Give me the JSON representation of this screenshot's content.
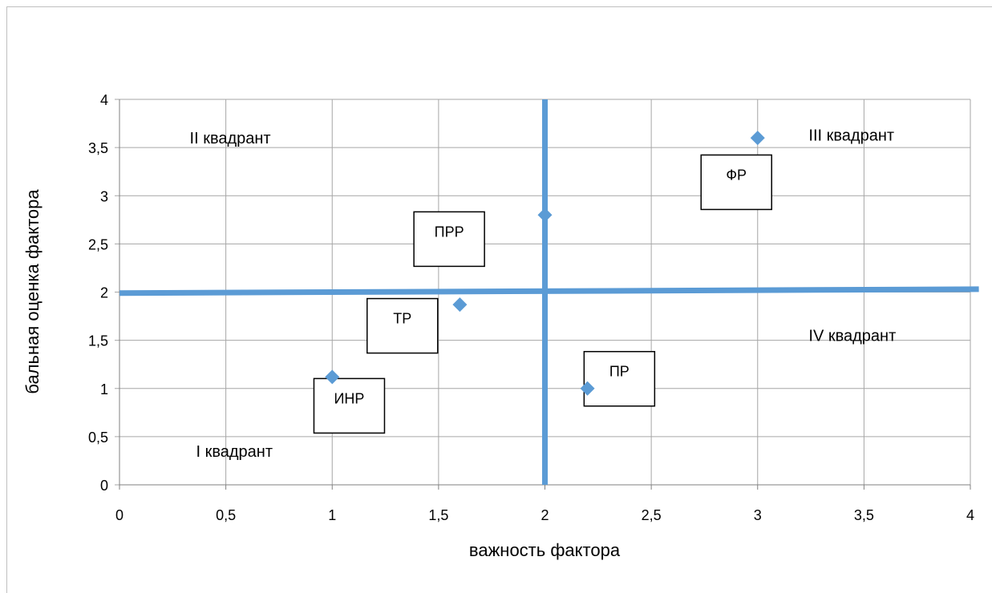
{
  "chart_data": {
    "type": "scatter",
    "xlabel": "важность фактора",
    "ylabel": "бальная оценка фактора",
    "xlim": [
      0,
      4
    ],
    "ylim": [
      0,
      4
    ],
    "x_ticks": [
      "0",
      "0,5",
      "1",
      "1,5",
      "2",
      "2,5",
      "3",
      "3,5",
      "4"
    ],
    "y_ticks": [
      "0",
      "0,5",
      "1",
      "1,5",
      "2",
      "2,5",
      "3",
      "3,5",
      "4"
    ],
    "grid": true,
    "marker_color": "#5b9bd5",
    "line_color": "#5b9bd5",
    "points": [
      {
        "x": 1.0,
        "y": 1.12
      },
      {
        "x": 1.6,
        "y": 1.87
      },
      {
        "x": 2.0,
        "y": 2.8
      },
      {
        "x": 2.2,
        "y": 1.0
      },
      {
        "x": 3.0,
        "y": 3.6
      }
    ],
    "divider_lines": [
      {
        "x1": 2.0,
        "y1": 0,
        "x2": 2.0,
        "y2": 4
      },
      {
        "x1": 0,
        "y1": 1.99,
        "x2": 4.04,
        "y2": 2.03
      }
    ],
    "quadrant_labels": [
      {
        "text": "II квадрант",
        "x": 0.33,
        "y": 3.6
      },
      {
        "text": "III квадрант",
        "x": 3.24,
        "y": 3.63
      },
      {
        "text": "IV квадрант",
        "x": 3.24,
        "y": 1.55
      },
      {
        "text": "I квадрант",
        "x": 0.36,
        "y": 0.35
      }
    ],
    "point_labels": [
      {
        "text": "ПРР",
        "x": 1.55,
        "y": 2.55
      },
      {
        "text": "ФР",
        "x": 2.9,
        "y": 3.14
      },
      {
        "text": "ТР",
        "x": 1.33,
        "y": 1.65
      },
      {
        "text": "ПР",
        "x": 2.35,
        "y": 1.1
      },
      {
        "text": "ИНР",
        "x": 1.08,
        "y": 0.82
      }
    ]
  }
}
